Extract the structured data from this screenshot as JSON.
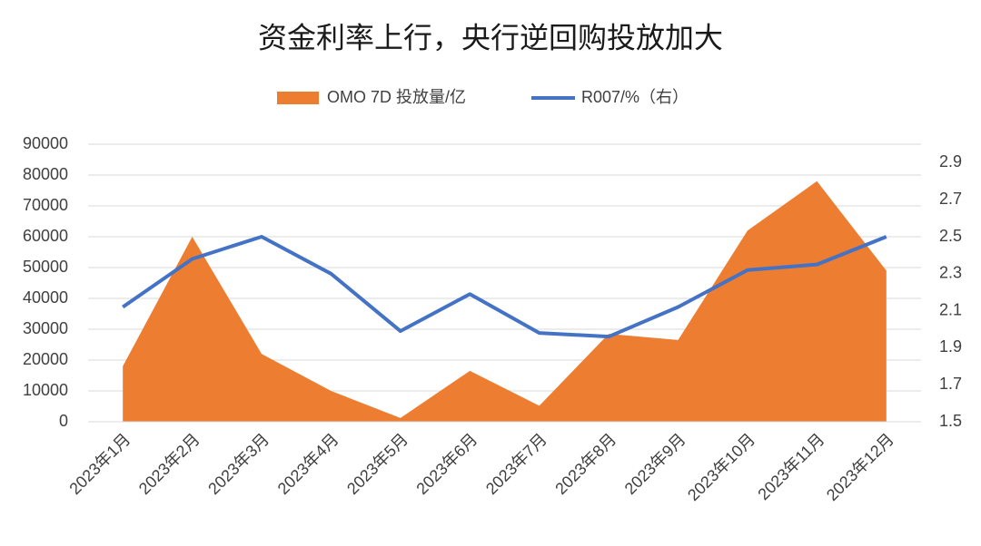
{
  "chart_data": {
    "type": "area-line",
    "title": "资金利率上行，央行逆回购投放加大",
    "categories": [
      "2023年1月",
      "2023年2月",
      "2023年3月",
      "2023年4月",
      "2023年5月",
      "2023年6月",
      "2023年7月",
      "2023年8月",
      "2023年9月",
      "2023年10月",
      "2023年11月",
      "2023年12月"
    ],
    "series": [
      {
        "name": "OMO 7D 投放量/亿",
        "color": "#ED7D31",
        "type": "area",
        "values": [
          18000,
          60000,
          22000,
          10000,
          1200,
          16500,
          5200,
          28500,
          26500,
          62000,
          78000,
          49000
        ]
      },
      {
        "name": "R007/%（右）",
        "color": "#4472C4",
        "type": "line",
        "axis": "y2",
        "values": [
          2.12,
          2.38,
          2.5,
          2.3,
          1.99,
          2.19,
          1.98,
          1.96,
          2.12,
          2.32,
          2.35,
          2.5
        ]
      }
    ],
    "ylim": [
      0,
      90000
    ],
    "yticks": [
      0,
      10000,
      20000,
      30000,
      40000,
      50000,
      60000,
      70000,
      80000,
      90000
    ],
    "y2lim": [
      1.5,
      3.0
    ],
    "y2ticks": [
      1.5,
      1.7,
      1.9,
      2.1,
      2.3,
      2.5,
      2.7,
      2.9
    ],
    "grid": true,
    "legend": "top"
  }
}
